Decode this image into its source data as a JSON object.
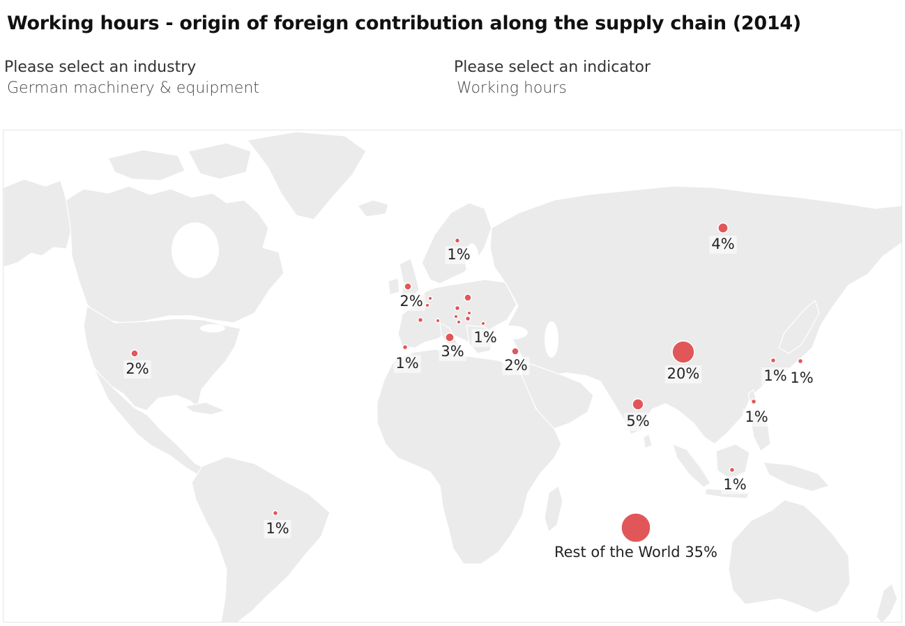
{
  "title": "Working hours - origin of foreign contribution along the supply chain (2014)",
  "filters": {
    "industry": {
      "label": "Please select an industry",
      "value": "German machinery & equipment"
    },
    "indicator": {
      "label": "Please select an indicator",
      "value": "Working hours"
    }
  },
  "colors": {
    "bubble": "#e15759",
    "land": "#ebebeb",
    "water": "#ffffff"
  },
  "bubbles": [
    {
      "id": "rest-of-world",
      "label": "Rest of the World 35%",
      "value": 35
    },
    {
      "id": "china",
      "label": "20%",
      "value": 20
    },
    {
      "id": "india",
      "label": "5%",
      "value": 5
    },
    {
      "id": "russia",
      "label": "4%",
      "value": 4
    },
    {
      "id": "italy",
      "label": "3%",
      "value": 3
    },
    {
      "id": "usa",
      "label": "2%",
      "value": 2
    },
    {
      "id": "uk",
      "label": "2%",
      "value": 2
    },
    {
      "id": "turkey",
      "label": "2%",
      "value": 2
    },
    {
      "id": "poland",
      "label": "",
      "value": 2
    },
    {
      "id": "czechia",
      "label": "",
      "value": 1
    },
    {
      "id": "france",
      "label": "",
      "value": 1
    },
    {
      "id": "hungary",
      "label": "1%",
      "value": 1
    },
    {
      "id": "spain",
      "label": "1%",
      "value": 1
    },
    {
      "id": "finland",
      "label": "1%",
      "value": 1
    },
    {
      "id": "south-korea",
      "label": "1%",
      "value": 1
    },
    {
      "id": "japan",
      "label": "1%",
      "value": 1
    },
    {
      "id": "taiwan",
      "label": "1%",
      "value": 1
    },
    {
      "id": "indonesia",
      "label": "1%",
      "value": 1
    },
    {
      "id": "brazil",
      "label": "1%",
      "value": 1
    },
    {
      "id": "netherlands",
      "label": "",
      "value": 0.5
    },
    {
      "id": "belgium",
      "label": "",
      "value": 0.5
    },
    {
      "id": "switzerland",
      "label": "",
      "value": 0.5
    },
    {
      "id": "austria",
      "label": "",
      "value": 0.5
    },
    {
      "id": "slovakia",
      "label": "",
      "value": 0.5
    },
    {
      "id": "slovenia",
      "label": "",
      "value": 0.5
    },
    {
      "id": "romania",
      "label": "",
      "value": 0.5
    }
  ]
}
